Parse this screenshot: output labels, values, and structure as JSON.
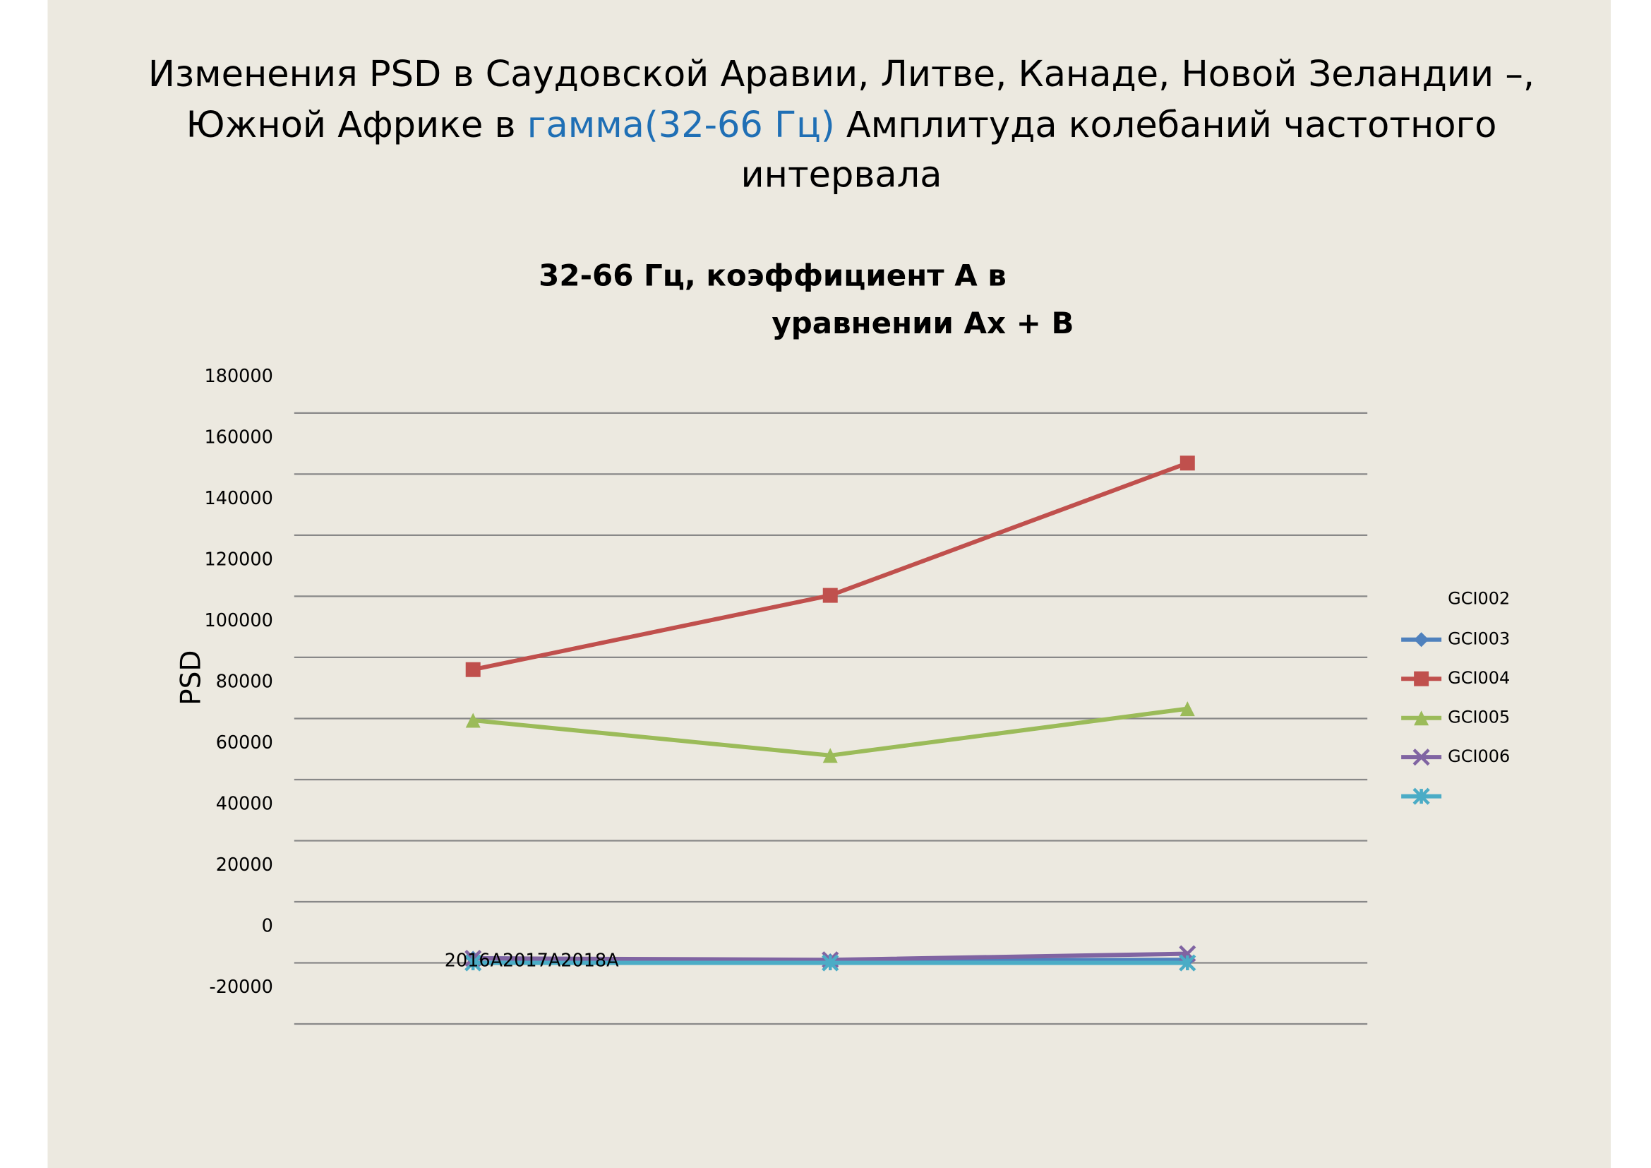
{
  "slide_title": [
    "Изменения PSD в Саудовской Аравии, Литве, Канаде, Новой Зеландии –,",
    "Южной Африке в ",
    "гамма(32-66 Гц)",
    " Амплитуда колебаний частотного",
    "интервала"
  ],
  "chart_data": {
    "type": "line",
    "title": [
      "32-66 Гц, коэффициент А в",
      "уравнении Ах + В"
    ],
    "y_label": "PSD",
    "legend_title": "GCI002",
    "categories": [
      "2016A2017A2018A",
      null,
      null
    ],
    "series": [
      {
        "name": "GCI003",
        "color": "#4f81bd",
        "marker": "diamond",
        "values": [
          1500,
          700,
          1000
        ]
      },
      {
        "name": "GCI004",
        "color": "#c0504d",
        "marker": "square",
        "values": [
          96000,
          120300,
          163600
        ]
      },
      {
        "name": "GCI005",
        "color": "#9bbb59",
        "marker": "triangle",
        "values": [
          79400,
          67900,
          83200
        ]
      },
      {
        "name": "GCI006",
        "color": "#8064a2",
        "marker": "x",
        "values": [
          1500,
          1000,
          3000
        ]
      },
      {
        "color": "#4bacc6",
        "marker": "star",
        "values": [
          0,
          0,
          0
        ]
      }
    ],
    "ylim": [
      -20000,
      180000
    ],
    "yticks": [
      180000,
      160000,
      140000,
      120000,
      100000,
      80000,
      60000,
      40000,
      20000,
      0,
      -20000
    ],
    "grid": true,
    "legend": "right"
  }
}
